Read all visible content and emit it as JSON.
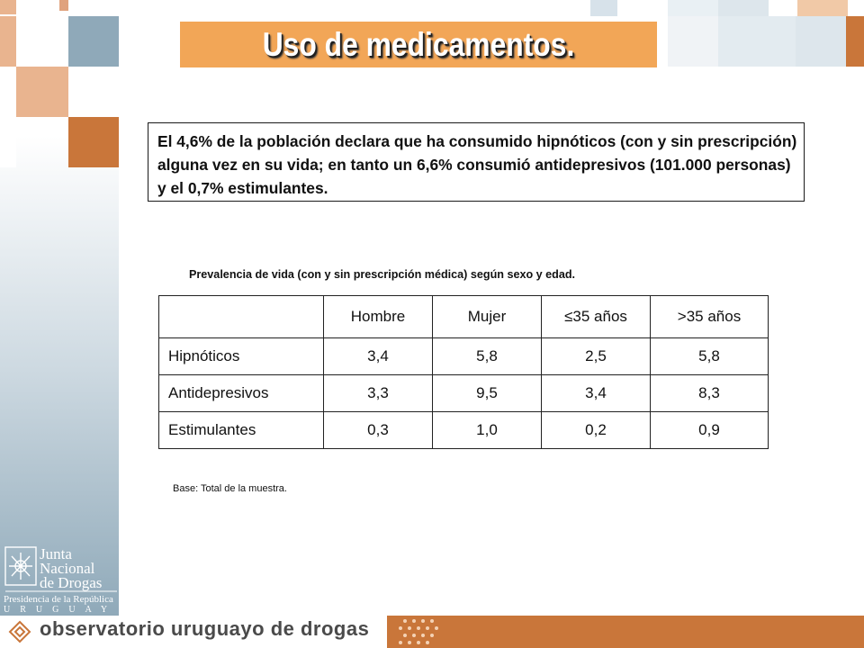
{
  "title": "Uso de medicamentos.",
  "summary": "El 4,6% de la población declara que ha consumido hipnóticos (con y sin prescripción) alguna vez en su vida; en tanto un 6,6% consumió antidepresivos (101.000 personas) y el 0,7% estimulantes.",
  "table": {
    "caption": "Prevalencia de vida (con y sin prescripción médica) según sexo y edad.",
    "headers": [
      "",
      "Hombre",
      "Mujer",
      "≤35 años",
      ">35 años"
    ],
    "rows": [
      {
        "label": "Hipnóticos",
        "values": [
          "3,4",
          "5,8",
          "2,5",
          "5,8"
        ]
      },
      {
        "label": "Antidepresivos",
        "values": [
          "3,3",
          "9,5",
          "3,4",
          "8,3"
        ]
      },
      {
        "label": "Estimulantes",
        "values": [
          "0,3",
          "1,0",
          "0,2",
          "0,9"
        ]
      }
    ]
  },
  "base_note": "Base: Total de la muestra.",
  "logo": {
    "line1": "Junta",
    "line2": "Nacional",
    "line3": "de Drogas",
    "presidency": "Presidencia de la República",
    "country": "URUGUAY"
  },
  "footer": {
    "text": "observatorio uruguayo de drogas"
  },
  "colors": {
    "accent_orange": "#f2a657",
    "dark_orange": "#c9763a",
    "steel_blue": "#8fa9b9"
  }
}
